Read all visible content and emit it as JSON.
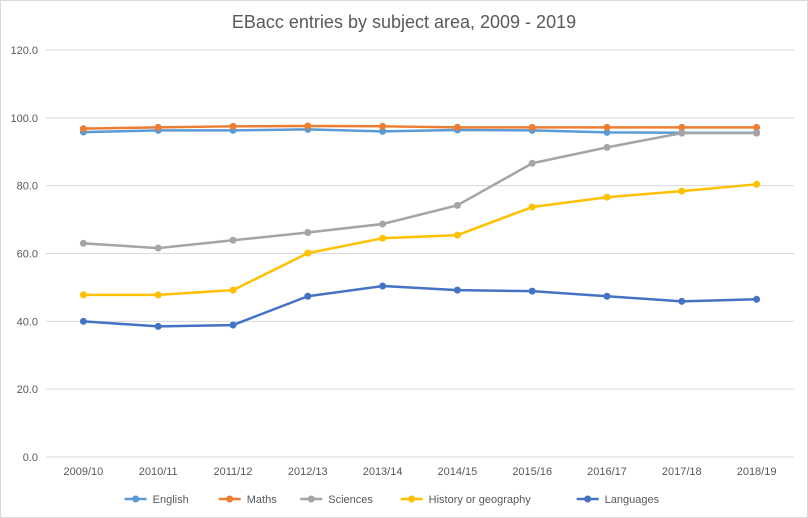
{
  "chart_data": {
    "type": "line",
    "title": "EBacc entries by subject area, 2009 - 2019",
    "xlabel": "",
    "ylabel": "",
    "categories": [
      "2009/10",
      "2010/11",
      "2011/12",
      "2012/13",
      "2013/14",
      "2014/15",
      "2015/16",
      "2016/17",
      "2017/18",
      "2018/19"
    ],
    "ylim": [
      0,
      120
    ],
    "yticks": [
      "0.0",
      "20.0",
      "40.0",
      "60.0",
      "80.0",
      "100.0",
      "120.0"
    ],
    "grid": true,
    "legend_position": "bottom",
    "series": [
      {
        "name": "English",
        "color": "#5b9bd5",
        "values": [
          95.8,
          96.3,
          96.3,
          96.6,
          96.0,
          96.4,
          96.3,
          95.7,
          95.6,
          95.6
        ]
      },
      {
        "name": "Maths",
        "color": "#ed7d31",
        "values": [
          96.8,
          97.2,
          97.5,
          97.6,
          97.5,
          97.2,
          97.2,
          97.2,
          97.2,
          97.2
        ]
      },
      {
        "name": "Sciences",
        "color": "#a5a5a5",
        "values": [
          63.0,
          61.6,
          63.9,
          66.2,
          68.7,
          74.2,
          86.6,
          91.3,
          95.5,
          95.5
        ]
      },
      {
        "name": "History or geography",
        "color": "#ffc000",
        "values": [
          47.8,
          47.8,
          49.2,
          60.1,
          64.5,
          65.4,
          73.7,
          76.6,
          78.4,
          80.4
        ]
      },
      {
        "name": "Languages",
        "color": "#4472c4",
        "values": [
          40.0,
          38.5,
          38.9,
          47.4,
          50.4,
          49.2,
          48.9,
          47.4,
          45.9,
          46.5
        ]
      }
    ]
  }
}
